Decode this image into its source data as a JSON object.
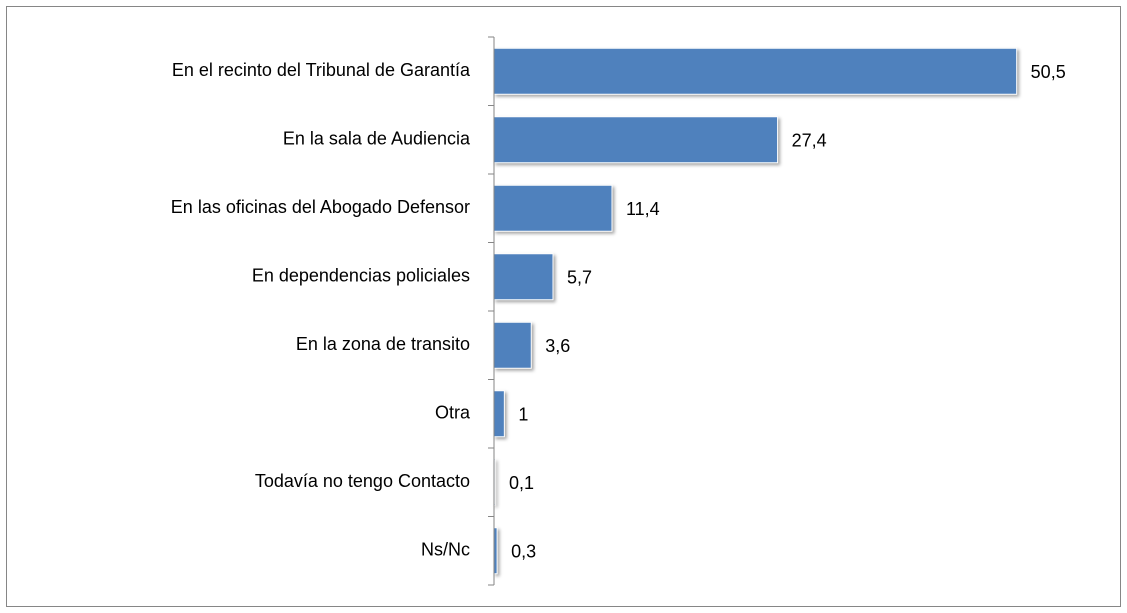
{
  "chart_data": {
    "type": "bar",
    "orientation": "horizontal",
    "categories": [
      "En el recinto del Tribunal de Garantía",
      "En la sala de Audiencia",
      "En las oficinas del Abogado Defensor",
      "En dependencias policiales",
      "En la zona de transito",
      "Otra",
      "Todavía no tengo Contacto",
      "Ns/Nc"
    ],
    "values": [
      50.5,
      27.4,
      11.4,
      5.7,
      3.6,
      1,
      0.1,
      0.3
    ],
    "value_labels": [
      "50,5",
      "27,4",
      "11,4",
      "5,7",
      "3,6",
      "1",
      "0,1",
      "0,3"
    ],
    "color": "#4f81bd",
    "xlim": [
      0,
      60
    ]
  }
}
